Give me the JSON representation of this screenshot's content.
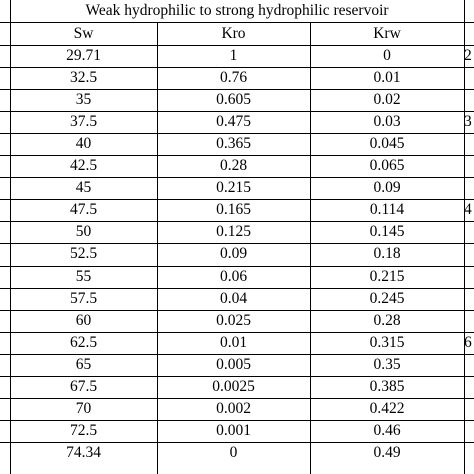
{
  "table": {
    "group_title": "Weak hydrophilic to strong hydrophilic reservoir",
    "columns": [
      "Sw",
      "Kro",
      "Krw"
    ],
    "rows": [
      {
        "sw": "29.71",
        "kro": "1",
        "krw": "0",
        "right_fragment": "2"
      },
      {
        "sw": "32.5",
        "kro": "0.76",
        "krw": "0.01",
        "right_fragment": ""
      },
      {
        "sw": "35",
        "kro": "0.605",
        "krw": "0.02",
        "right_fragment": ""
      },
      {
        "sw": "37.5",
        "kro": "0.475",
        "krw": "0.03",
        "right_fragment": "3"
      },
      {
        "sw": "40",
        "kro": "0.365",
        "krw": "0.045",
        "right_fragment": ""
      },
      {
        "sw": "42.5",
        "kro": "0.28",
        "krw": "0.065",
        "right_fragment": ""
      },
      {
        "sw": "45",
        "kro": "0.215",
        "krw": "0.09",
        "right_fragment": ""
      },
      {
        "sw": "47.5",
        "kro": "0.165",
        "krw": "0.114",
        "right_fragment": "4"
      },
      {
        "sw": "50",
        "kro": "0.125",
        "krw": "0.145",
        "right_fragment": ""
      },
      {
        "sw": "52.5",
        "kro": "0.09",
        "krw": "0.18",
        "right_fragment": ""
      },
      {
        "sw": "55",
        "kro": "0.06",
        "krw": "0.215",
        "right_fragment": ""
      },
      {
        "sw": "57.5",
        "kro": "0.04",
        "krw": "0.245",
        "right_fragment": ""
      },
      {
        "sw": "60",
        "kro": "0.025",
        "krw": "0.28",
        "right_fragment": ""
      },
      {
        "sw": "62.5",
        "kro": "0.01",
        "krw": "0.315",
        "right_fragment": "6"
      },
      {
        "sw": "65",
        "kro": "0.005",
        "krw": "0.35",
        "right_fragment": ""
      },
      {
        "sw": "67.5",
        "kro": "0.0025",
        "krw": "0.385",
        "right_fragment": ""
      },
      {
        "sw": "70",
        "kro": "0.002",
        "krw": "0.422",
        "right_fragment": ""
      },
      {
        "sw": "72.5",
        "kro": "0.001",
        "krw": "0.46",
        "right_fragment": ""
      },
      {
        "sw": "74.34",
        "kro": "0",
        "krw": "0.49",
        "right_fragment": ""
      }
    ]
  }
}
